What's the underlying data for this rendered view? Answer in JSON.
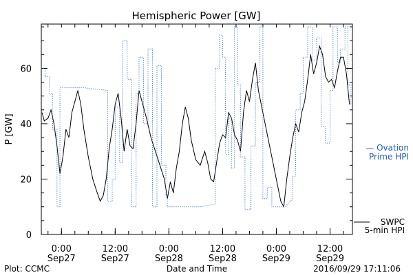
{
  "chart_data": {
    "type": "line",
    "title": "Hemispheric Power [GW]",
    "ylabel": "P [GW]",
    "xlabel": "Date and Time",
    "ylim": [
      0,
      76
    ],
    "yticks": [
      0,
      20,
      40,
      60
    ],
    "grid": false,
    "x_ticks": [
      {
        "time": "2016-09-27T00:00",
        "line1": "0:00",
        "line2": "Sep27"
      },
      {
        "time": "2016-09-27T12:00",
        "line1": "12:00",
        "line2": "Sep27"
      },
      {
        "time": "2016-09-28T00:00",
        "line1": "0:00",
        "line2": "Sep28"
      },
      {
        "time": "2016-09-28T12:00",
        "line1": "12:00",
        "line2": "Sep28"
      },
      {
        "time": "2016-09-29T00:00",
        "line1": "0:00",
        "line2": "Sep29"
      },
      {
        "time": "2016-09-29T12:00",
        "line1": "12:00",
        "line2": "Sep29"
      }
    ],
    "xlim": [
      "2016-09-26T19:30",
      "2016-09-29T17:00"
    ],
    "series": [
      {
        "name": "SWPC 5-min HPI",
        "legend_lines": [
          "SWPC",
          "5-min HPI"
        ],
        "color": "#000000",
        "style": "solid",
        "points": [
          [
            "2016-09-26T19:40",
            44
          ],
          [
            "2016-09-26T20:10",
            41
          ],
          [
            "2016-09-26T21:00",
            42
          ],
          [
            "2016-09-26T21:40",
            45
          ],
          [
            "2016-09-26T22:20",
            40
          ],
          [
            "2016-09-26T23:00",
            32
          ],
          [
            "2016-09-26T23:40",
            22
          ],
          [
            "2016-09-27T00:20",
            28
          ],
          [
            "2016-09-27T01:00",
            38
          ],
          [
            "2016-09-27T01:40",
            35
          ],
          [
            "2016-09-27T02:20",
            44
          ],
          [
            "2016-09-27T03:00",
            48
          ],
          [
            "2016-09-27T03:40",
            52
          ],
          [
            "2016-09-27T04:20",
            47
          ],
          [
            "2016-09-27T05:00",
            38
          ],
          [
            "2016-09-27T06:00",
            28
          ],
          [
            "2016-09-27T07:00",
            20
          ],
          [
            "2016-09-27T08:00",
            15
          ],
          [
            "2016-09-27T08:40",
            12
          ],
          [
            "2016-09-27T09:20",
            14
          ],
          [
            "2016-09-27T10:00",
            20
          ],
          [
            "2016-09-27T10:40",
            31
          ],
          [
            "2016-09-27T11:20",
            38
          ],
          [
            "2016-09-27T12:00",
            47
          ],
          [
            "2016-09-27T12:40",
            51
          ],
          [
            "2016-09-27T13:20",
            42
          ],
          [
            "2016-09-27T14:00",
            30
          ],
          [
            "2016-09-27T14:40",
            38
          ],
          [
            "2016-09-27T15:20",
            32
          ],
          [
            "2016-09-27T16:00",
            31
          ],
          [
            "2016-09-27T16:40",
            40
          ],
          [
            "2016-09-27T17:20",
            52
          ],
          [
            "2016-09-27T18:00",
            48
          ],
          [
            "2016-09-27T19:00",
            42
          ],
          [
            "2016-09-27T20:00",
            35
          ],
          [
            "2016-09-27T21:00",
            30
          ],
          [
            "2016-09-27T22:00",
            25
          ],
          [
            "2016-09-27T23:00",
            20
          ],
          [
            "2016-09-27T23:40",
            13
          ],
          [
            "2016-09-28T00:20",
            19
          ],
          [
            "2016-09-28T01:00",
            15
          ],
          [
            "2016-09-28T01:40",
            24
          ],
          [
            "2016-09-28T02:20",
            30
          ],
          [
            "2016-09-28T03:00",
            40
          ],
          [
            "2016-09-28T03:40",
            46
          ],
          [
            "2016-09-28T04:20",
            42
          ],
          [
            "2016-09-28T05:00",
            34
          ],
          [
            "2016-09-28T06:00",
            27
          ],
          [
            "2016-09-28T07:00",
            25
          ],
          [
            "2016-09-28T08:00",
            30
          ],
          [
            "2016-09-28T08:40",
            26
          ],
          [
            "2016-09-28T09:20",
            20
          ],
          [
            "2016-09-28T10:00",
            19
          ],
          [
            "2016-09-28T10:40",
            26
          ],
          [
            "2016-09-28T11:20",
            33
          ],
          [
            "2016-09-28T12:00",
            36
          ],
          [
            "2016-09-28T12:40",
            35
          ],
          [
            "2016-09-28T13:20",
            44
          ],
          [
            "2016-09-28T14:00",
            42
          ],
          [
            "2016-09-28T14:40",
            36
          ],
          [
            "2016-09-28T15:20",
            34
          ],
          [
            "2016-09-28T16:00",
            30
          ],
          [
            "2016-09-28T16:40",
            44
          ],
          [
            "2016-09-28T17:20",
            52
          ],
          [
            "2016-09-28T18:00",
            48
          ],
          [
            "2016-09-28T18:40",
            56
          ],
          [
            "2016-09-28T19:20",
            62
          ],
          [
            "2016-09-28T20:00",
            52
          ],
          [
            "2016-09-28T21:00",
            44
          ],
          [
            "2016-09-28T22:00",
            36
          ],
          [
            "2016-09-28T23:00",
            28
          ],
          [
            "2016-09-29T00:00",
            20
          ],
          [
            "2016-09-29T01:00",
            12
          ],
          [
            "2016-09-29T01:40",
            10
          ],
          [
            "2016-09-29T02:20",
            20
          ],
          [
            "2016-09-29T03:00",
            28
          ],
          [
            "2016-09-29T03:40",
            35
          ],
          [
            "2016-09-29T04:20",
            40
          ],
          [
            "2016-09-29T05:00",
            37
          ],
          [
            "2016-09-29T05:40",
            44
          ],
          [
            "2016-09-29T06:20",
            48
          ],
          [
            "2016-09-29T07:00",
            56
          ],
          [
            "2016-09-29T07:40",
            65
          ],
          [
            "2016-09-29T08:20",
            58
          ],
          [
            "2016-09-29T09:00",
            62
          ],
          [
            "2016-09-29T09:40",
            68
          ],
          [
            "2016-09-29T10:20",
            65
          ],
          [
            "2016-09-29T11:00",
            57
          ],
          [
            "2016-09-29T11:40",
            55
          ],
          [
            "2016-09-29T12:20",
            56
          ],
          [
            "2016-09-29T13:00",
            53
          ],
          [
            "2016-09-29T13:40",
            59
          ],
          [
            "2016-09-29T14:20",
            64
          ],
          [
            "2016-09-29T15:00",
            64
          ],
          [
            "2016-09-29T15:40",
            58
          ],
          [
            "2016-09-29T16:20",
            47
          ]
        ]
      },
      {
        "name": "Ovation Prime HPI",
        "legend_lines": [
          "— Ovation",
          "Prime HPI"
        ],
        "color": "#1f5fbf",
        "style": "dotted",
        "points": [
          [
            "2016-09-26T19:30",
            60
          ],
          [
            "2016-09-26T20:20",
            60
          ],
          [
            "2016-09-26T20:20",
            57
          ],
          [
            "2016-09-26T21:20",
            57
          ],
          [
            "2016-09-26T21:20",
            51
          ],
          [
            "2016-09-26T22:00",
            51
          ],
          [
            "2016-09-26T22:00",
            38
          ],
          [
            "2016-09-26T23:00",
            38
          ],
          [
            "2016-09-26T23:00",
            10
          ],
          [
            "2016-09-26T23:40",
            10
          ],
          [
            "2016-09-26T23:40",
            53
          ],
          [
            "2016-09-27T05:00",
            53
          ],
          [
            "2016-09-27T10:20",
            52
          ],
          [
            "2016-09-27T10:20",
            12
          ],
          [
            "2016-09-27T11:20",
            12
          ],
          [
            "2016-09-27T11:20",
            20
          ],
          [
            "2016-09-27T12:00",
            20
          ],
          [
            "2016-09-27T12:00",
            46
          ],
          [
            "2016-09-27T13:00",
            46
          ],
          [
            "2016-09-27T13:00",
            26
          ],
          [
            "2016-09-27T13:40",
            26
          ],
          [
            "2016-09-27T13:40",
            70
          ],
          [
            "2016-09-27T14:40",
            70
          ],
          [
            "2016-09-27T14:40",
            56
          ],
          [
            "2016-09-27T15:40",
            56
          ],
          [
            "2016-09-27T15:40",
            10
          ],
          [
            "2016-09-27T16:40",
            10
          ],
          [
            "2016-09-27T16:40",
            51
          ],
          [
            "2016-09-27T17:20",
            51
          ],
          [
            "2016-09-27T17:20",
            64
          ],
          [
            "2016-09-27T18:20",
            64
          ],
          [
            "2016-09-27T18:20",
            40
          ],
          [
            "2016-09-27T19:20",
            40
          ],
          [
            "2016-09-27T19:20",
            67
          ],
          [
            "2016-09-27T20:20",
            67
          ],
          [
            "2016-09-27T20:20",
            10
          ],
          [
            "2016-09-27T21:20",
            10
          ],
          [
            "2016-09-27T21:20",
            61
          ],
          [
            "2016-09-27T22:20",
            61
          ],
          [
            "2016-09-27T22:20",
            25
          ],
          [
            "2016-09-27T23:20",
            25
          ],
          [
            "2016-09-27T23:20",
            14
          ],
          [
            "2016-09-27T23:40",
            14
          ],
          [
            "2016-09-27T23:40",
            10
          ],
          [
            "2016-09-28T07:00",
            10
          ],
          [
            "2016-09-28T10:20",
            11
          ],
          [
            "2016-09-28T10:20",
            60
          ],
          [
            "2016-09-28T11:20",
            60
          ],
          [
            "2016-09-28T11:20",
            72
          ],
          [
            "2016-09-28T12:00",
            72
          ],
          [
            "2016-09-28T12:00",
            64
          ],
          [
            "2016-09-28T12:40",
            64
          ],
          [
            "2016-09-28T12:40",
            29
          ],
          [
            "2016-09-28T13:20",
            29
          ],
          [
            "2016-09-28T13:20",
            42
          ],
          [
            "2016-09-28T14:00",
            42
          ],
          [
            "2016-09-28T14:00",
            24
          ],
          [
            "2016-09-28T14:40",
            24
          ],
          [
            "2016-09-28T14:40",
            75
          ],
          [
            "2016-09-28T15:20",
            75
          ],
          [
            "2016-09-28T15:20",
            54
          ],
          [
            "2016-09-28T16:00",
            54
          ],
          [
            "2016-09-28T16:00",
            28
          ],
          [
            "2016-09-28T17:00",
            28
          ],
          [
            "2016-09-28T17:00",
            9
          ],
          [
            "2016-09-28T18:20",
            9
          ],
          [
            "2016-09-28T18:20",
            32
          ],
          [
            "2016-09-28T19:20",
            32
          ],
          [
            "2016-09-28T19:20",
            55
          ],
          [
            "2016-09-28T20:20",
            55
          ],
          [
            "2016-09-28T20:20",
            75
          ],
          [
            "2016-09-28T21:00",
            75
          ],
          [
            "2016-09-28T21:00",
            13
          ],
          [
            "2016-09-28T22:00",
            13
          ],
          [
            "2016-09-28T22:00",
            17
          ],
          [
            "2016-09-28T23:00",
            17
          ],
          [
            "2016-09-28T23:00",
            10
          ],
          [
            "2016-09-29T02:00",
            10
          ],
          [
            "2016-09-29T03:40",
            13
          ],
          [
            "2016-09-29T03:40",
            21
          ],
          [
            "2016-09-29T04:20",
            21
          ],
          [
            "2016-09-29T04:20",
            45
          ],
          [
            "2016-09-29T05:20",
            45
          ],
          [
            "2016-09-29T05:20",
            51
          ],
          [
            "2016-09-29T06:00",
            51
          ],
          [
            "2016-09-29T06:00",
            64
          ],
          [
            "2016-09-29T07:00",
            64
          ],
          [
            "2016-09-29T07:00",
            75
          ],
          [
            "2016-09-29T08:00",
            75
          ],
          [
            "2016-09-29T08:00",
            63
          ],
          [
            "2016-09-29T09:00",
            63
          ],
          [
            "2016-09-29T09:00",
            71
          ],
          [
            "2016-09-29T10:00",
            71
          ],
          [
            "2016-09-29T10:00",
            39
          ],
          [
            "2016-09-29T11:00",
            39
          ],
          [
            "2016-09-29T11:00",
            33
          ],
          [
            "2016-09-29T12:00",
            33
          ],
          [
            "2016-09-29T12:00",
            52
          ],
          [
            "2016-09-29T12:40",
            52
          ],
          [
            "2016-09-29T12:40",
            75
          ],
          [
            "2016-09-29T13:40",
            75
          ],
          [
            "2016-09-29T13:40",
            62
          ],
          [
            "2016-09-29T14:20",
            62
          ],
          [
            "2016-09-29T14:20",
            67
          ],
          [
            "2016-09-29T15:20",
            67
          ],
          [
            "2016-09-29T15:20",
            75
          ],
          [
            "2016-09-29T16:00",
            75
          ],
          [
            "2016-09-29T16:00",
            54
          ],
          [
            "2016-09-29T16:40",
            54
          ],
          [
            "2016-09-29T16:40",
            47
          ]
        ]
      }
    ]
  },
  "footer": {
    "left": "Plot: CCMC",
    "right": "2016/09/29 17:11:06"
  }
}
